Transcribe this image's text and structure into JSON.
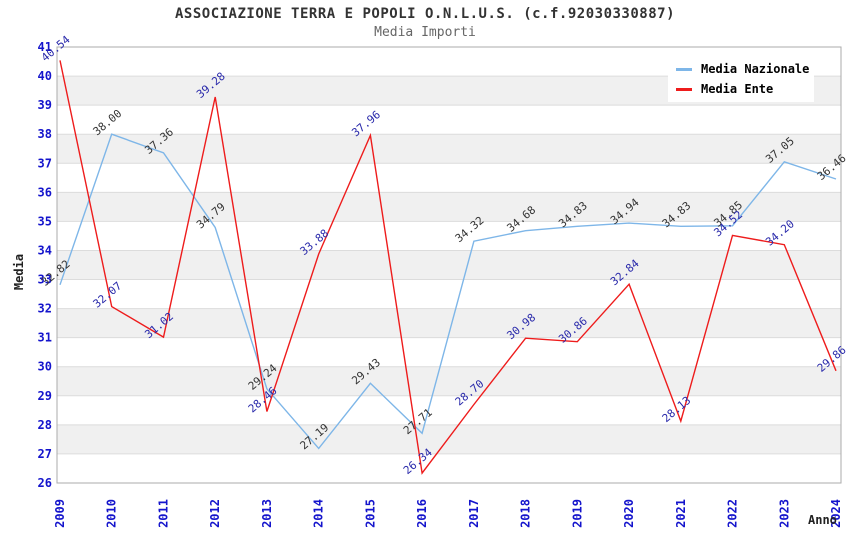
{
  "title": "ASSOCIAZIONE TERRA E POPOLI O.N.L.U.S. (c.f.92030330887)",
  "subtitle": "Media Importi",
  "chart_data": {
    "type": "line",
    "x": [
      "2009",
      "2010",
      "2011",
      "2012",
      "2013",
      "2014",
      "2015",
      "2016",
      "2017",
      "2018",
      "2019",
      "2020",
      "2021",
      "2022",
      "2023",
      "2024"
    ],
    "series": [
      {
        "name": "Media Nazionale",
        "color": "#7EB6E8",
        "label_color": "#333333",
        "values": [
          32.82,
          38.0,
          37.36,
          34.79,
          29.24,
          27.19,
          29.43,
          27.71,
          34.32,
          34.68,
          34.83,
          34.94,
          34.83,
          34.85,
          37.05,
          36.46
        ]
      },
      {
        "name": "Media Ente",
        "color": "#EE1C1C",
        "label_color": "#2828AA",
        "values": [
          40.54,
          32.07,
          31.02,
          39.28,
          28.46,
          33.88,
          37.96,
          26.34,
          28.7,
          30.98,
          30.86,
          32.84,
          28.13,
          34.52,
          34.2,
          29.86
        ]
      }
    ],
    "xlabel": "Anno",
    "ylabel": "Media",
    "ylim": [
      26,
      41
    ],
    "y_ticks": [
      26,
      27,
      28,
      29,
      30,
      31,
      32,
      33,
      34,
      35,
      36,
      37,
      38,
      39,
      40,
      41
    ],
    "grid": true,
    "legend_position": "top-right",
    "styles": {
      "tick_label_color": "#1414CC",
      "grid_color": "#DCDCDC",
      "band_color": "#F0F0F0",
      "border_color": "#ABABAB",
      "plot_background": "#FFFFFF"
    }
  }
}
